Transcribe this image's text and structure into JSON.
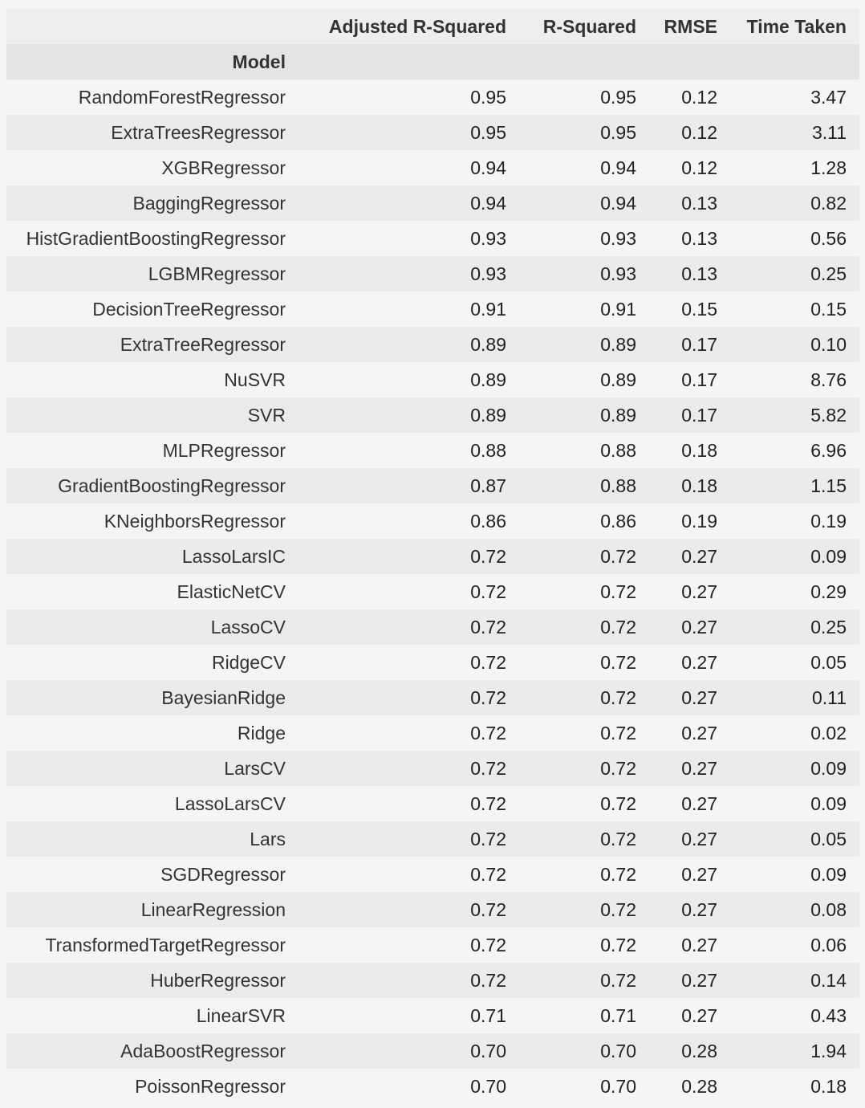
{
  "table": {
    "columns": [
      "Adjusted R-Squared",
      "R-Squared",
      "RMSE",
      "Time Taken"
    ],
    "index_name": "Model",
    "rows": [
      {
        "model": "RandomForestRegressor",
        "adj_r2": "0.95",
        "r2": "0.95",
        "rmse": "0.12",
        "time": "3.47"
      },
      {
        "model": "ExtraTreesRegressor",
        "adj_r2": "0.95",
        "r2": "0.95",
        "rmse": "0.12",
        "time": "3.11"
      },
      {
        "model": "XGBRegressor",
        "adj_r2": "0.94",
        "r2": "0.94",
        "rmse": "0.12",
        "time": "1.28"
      },
      {
        "model": "BaggingRegressor",
        "adj_r2": "0.94",
        "r2": "0.94",
        "rmse": "0.13",
        "time": "0.82"
      },
      {
        "model": "HistGradientBoostingRegressor",
        "adj_r2": "0.93",
        "r2": "0.93",
        "rmse": "0.13",
        "time": "0.56"
      },
      {
        "model": "LGBMRegressor",
        "adj_r2": "0.93",
        "r2": "0.93",
        "rmse": "0.13",
        "time": "0.25"
      },
      {
        "model": "DecisionTreeRegressor",
        "adj_r2": "0.91",
        "r2": "0.91",
        "rmse": "0.15",
        "time": "0.15"
      },
      {
        "model": "ExtraTreeRegressor",
        "adj_r2": "0.89",
        "r2": "0.89",
        "rmse": "0.17",
        "time": "0.10"
      },
      {
        "model": "NuSVR",
        "adj_r2": "0.89",
        "r2": "0.89",
        "rmse": "0.17",
        "time": "8.76"
      },
      {
        "model": "SVR",
        "adj_r2": "0.89",
        "r2": "0.89",
        "rmse": "0.17",
        "time": "5.82"
      },
      {
        "model": "MLPRegressor",
        "adj_r2": "0.88",
        "r2": "0.88",
        "rmse": "0.18",
        "time": "6.96"
      },
      {
        "model": "GradientBoostingRegressor",
        "adj_r2": "0.87",
        "r2": "0.88",
        "rmse": "0.18",
        "time": "1.15"
      },
      {
        "model": "KNeighborsRegressor",
        "adj_r2": "0.86",
        "r2": "0.86",
        "rmse": "0.19",
        "time": "0.19"
      },
      {
        "model": "LassoLarsIC",
        "adj_r2": "0.72",
        "r2": "0.72",
        "rmse": "0.27",
        "time": "0.09"
      },
      {
        "model": "ElasticNetCV",
        "adj_r2": "0.72",
        "r2": "0.72",
        "rmse": "0.27",
        "time": "0.29"
      },
      {
        "model": "LassoCV",
        "adj_r2": "0.72",
        "r2": "0.72",
        "rmse": "0.27",
        "time": "0.25"
      },
      {
        "model": "RidgeCV",
        "adj_r2": "0.72",
        "r2": "0.72",
        "rmse": "0.27",
        "time": "0.05"
      },
      {
        "model": "BayesianRidge",
        "adj_r2": "0.72",
        "r2": "0.72",
        "rmse": "0.27",
        "time": "0.11"
      },
      {
        "model": "Ridge",
        "adj_r2": "0.72",
        "r2": "0.72",
        "rmse": "0.27",
        "time": "0.02"
      },
      {
        "model": "LarsCV",
        "adj_r2": "0.72",
        "r2": "0.72",
        "rmse": "0.27",
        "time": "0.09"
      },
      {
        "model": "LassoLarsCV",
        "adj_r2": "0.72",
        "r2": "0.72",
        "rmse": "0.27",
        "time": "0.09"
      },
      {
        "model": "Lars",
        "adj_r2": "0.72",
        "r2": "0.72",
        "rmse": "0.27",
        "time": "0.05"
      },
      {
        "model": "SGDRegressor",
        "adj_r2": "0.72",
        "r2": "0.72",
        "rmse": "0.27",
        "time": "0.09"
      },
      {
        "model": "LinearRegression",
        "adj_r2": "0.72",
        "r2": "0.72",
        "rmse": "0.27",
        "time": "0.08"
      },
      {
        "model": "TransformedTargetRegressor",
        "adj_r2": "0.72",
        "r2": "0.72",
        "rmse": "0.27",
        "time": "0.06"
      },
      {
        "model": "HuberRegressor",
        "adj_r2": "0.72",
        "r2": "0.72",
        "rmse": "0.27",
        "time": "0.14"
      },
      {
        "model": "LinearSVR",
        "adj_r2": "0.71",
        "r2": "0.71",
        "rmse": "0.27",
        "time": "0.43"
      },
      {
        "model": "AdaBoostRegressor",
        "adj_r2": "0.70",
        "r2": "0.70",
        "rmse": "0.28",
        "time": "1.94"
      },
      {
        "model": "PoissonRegressor",
        "adj_r2": "0.70",
        "r2": "0.70",
        "rmse": "0.28",
        "time": "0.18"
      }
    ]
  }
}
